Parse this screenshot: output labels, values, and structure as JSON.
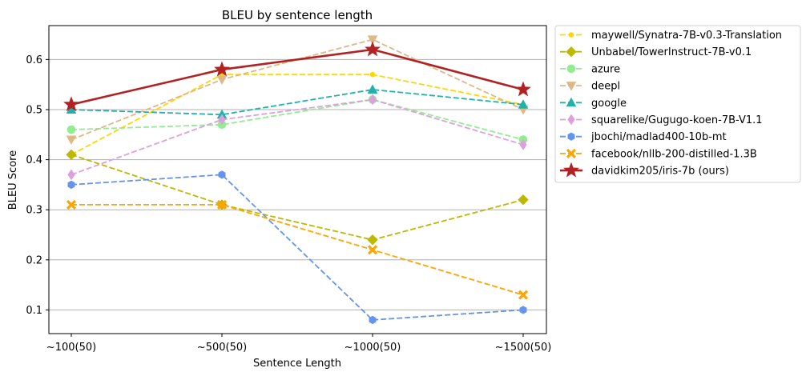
{
  "chart_data": {
    "type": "line",
    "title": "BLEU by sentence length",
    "xlabel": "Sentence Length",
    "ylabel": "BLEU Score",
    "categories": [
      "~100(50)",
      "~500(50)",
      "~1000(50)",
      "~1500(50)"
    ],
    "ylim": [
      0.05,
      0.67
    ],
    "yticks": [
      0.1,
      0.2,
      0.3,
      0.4,
      0.5,
      0.6
    ],
    "ytick_labels": [
      "0.1",
      "0.2",
      "0.3",
      "0.4",
      "0.5",
      "0.6"
    ],
    "grid": "y",
    "legend_position": "outside upper right",
    "series": [
      {
        "name": "maywell/Synatra-7B-v0.3-Translation",
        "values": [
          0.41,
          0.57,
          0.57,
          0.51
        ],
        "color": "#FFD700",
        "marker": "point",
        "linestyle": "dashed"
      },
      {
        "name": "Unbabel/TowerInstruct-7B-v0.1",
        "values": [
          0.41,
          0.31,
          0.24,
          0.32
        ],
        "color": "#BDB800",
        "marker": "diamond",
        "linestyle": "dashed"
      },
      {
        "name": "azure",
        "values": [
          0.46,
          0.47,
          0.52,
          0.44
        ],
        "color": "#90EE90",
        "marker": "circle",
        "linestyle": "dashed"
      },
      {
        "name": "deepl",
        "values": [
          0.44,
          0.56,
          0.64,
          0.5
        ],
        "color": "#DEB887",
        "marker": "triangle-down",
        "linestyle": "dashed"
      },
      {
        "name": "google",
        "values": [
          0.5,
          0.49,
          0.54,
          0.51
        ],
        "color": "#20B2AA",
        "marker": "triangle-up",
        "linestyle": "dashed"
      },
      {
        "name": "squarelike/Gugugo-koen-7B-V1.1",
        "values": [
          0.37,
          0.48,
          0.52,
          0.43
        ],
        "color": "#DDA0DD",
        "marker": "thin-diamond",
        "linestyle": "dashed"
      },
      {
        "name": "jbochi/madlad400-10b-mt",
        "values": [
          0.35,
          0.37,
          0.08,
          0.1
        ],
        "color": "#6495ED",
        "marker": "hexagon",
        "linestyle": "dashed"
      },
      {
        "name": "facebook/nllb-200-distilled-1.3B",
        "values": [
          0.31,
          0.31,
          0.22,
          0.13
        ],
        "color": "#FFA500",
        "marker": "x-filled",
        "linestyle": "dashed"
      },
      {
        "name": "davidkim205/iris-7b (ours)",
        "values": [
          0.51,
          0.58,
          0.62,
          0.54
        ],
        "color": "#B22222",
        "marker": "star",
        "linestyle": "solid"
      }
    ]
  }
}
